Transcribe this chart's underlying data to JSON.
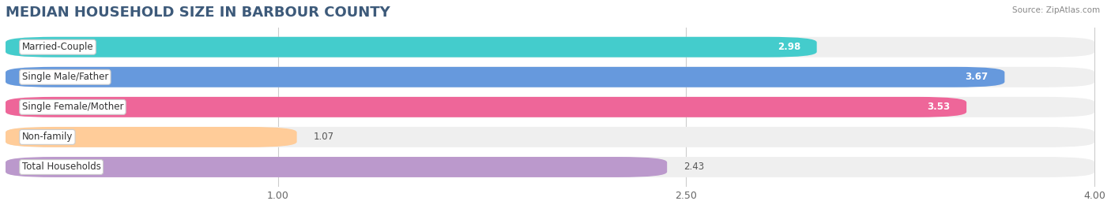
{
  "title": "MEDIAN HOUSEHOLD SIZE IN BARBOUR COUNTY",
  "source": "Source: ZipAtlas.com",
  "categories": [
    "Married-Couple",
    "Single Male/Father",
    "Single Female/Mother",
    "Non-family",
    "Total Households"
  ],
  "values": [
    2.98,
    3.67,
    3.53,
    1.07,
    2.43
  ],
  "bar_colors": [
    "#44CCCC",
    "#6699DD",
    "#EE6699",
    "#FFCC99",
    "#BB99CC"
  ],
  "label_colors": [
    "white",
    "white",
    "white",
    "black",
    "black"
  ],
  "xmin": 0.0,
  "xmax": 4.0,
  "xticks": [
    1.0,
    2.5,
    4.0
  ],
  "background_color": "#ffffff",
  "bar_background_color": "#efefef",
  "title_fontsize": 13,
  "label_fontsize": 8.5,
  "value_fontsize": 8.5
}
